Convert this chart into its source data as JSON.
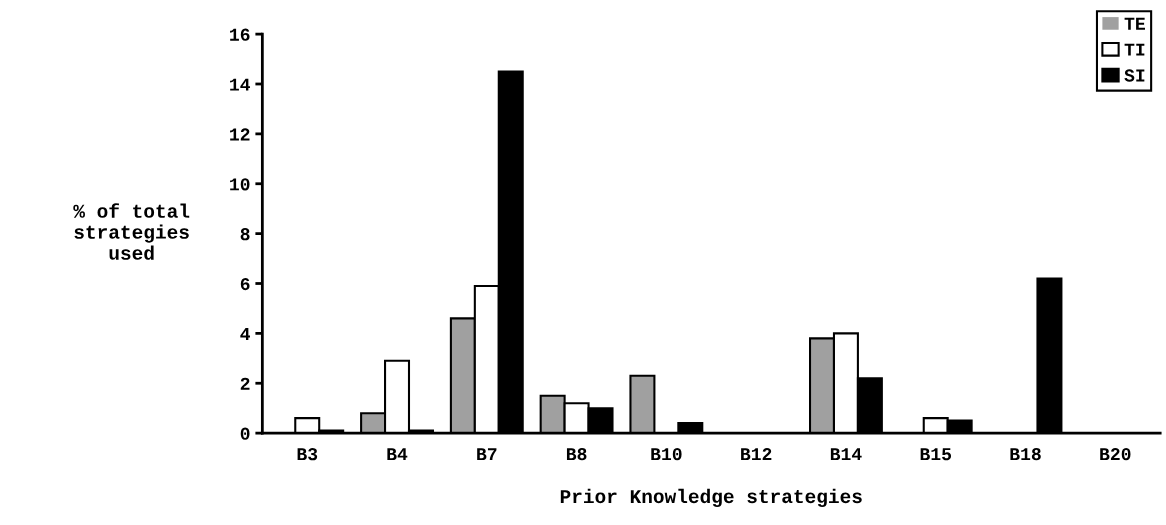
{
  "chart_data": {
    "type": "bar",
    "xlabel": "Prior Knowledge strategies",
    "ylabel": "% of total\nstrategies\nused",
    "categories": [
      "B3",
      "B4",
      "B7",
      "B8",
      "B10",
      "B12",
      "B14",
      "B15",
      "B18",
      "B20"
    ],
    "series": [
      {
        "name": "TE",
        "color": "#a0a0a0",
        "values": [
          0,
          0.8,
          4.6,
          1.5,
          2.3,
          0,
          3.8,
          0,
          0,
          0
        ]
      },
      {
        "name": "TI",
        "color": "#ffffff",
        "values": [
          0.6,
          2.9,
          5.9,
          1.2,
          0,
          0,
          4.0,
          0.6,
          0,
          0
        ]
      },
      {
        "name": "SI",
        "color": "#000000",
        "values": [
          0.1,
          0.1,
          14.5,
          1.0,
          0.4,
          0,
          2.2,
          0.5,
          6.2,
          0
        ]
      }
    ],
    "ylim": [
      0,
      16
    ],
    "yticks": [
      0,
      2,
      4,
      6,
      8,
      10,
      12,
      14,
      16
    ],
    "grid": false,
    "legend": "top right"
  }
}
